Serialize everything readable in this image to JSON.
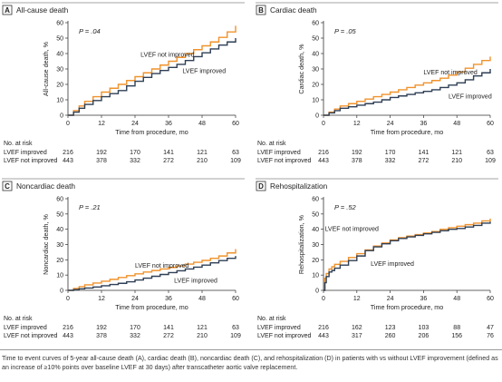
{
  "chart_data": [
    {
      "type": "line",
      "panel_letter": "A",
      "title": "All-cause death",
      "p_value": "P = .04",
      "xlabel": "Time from procedure, mo",
      "ylabel": "All-cause death, %",
      "xlim": [
        0,
        60
      ],
      "ylim": [
        0,
        60
      ],
      "xticks": [
        0,
        12,
        24,
        36,
        48,
        60
      ],
      "yticks": [
        0,
        10,
        20,
        30,
        40,
        50,
        60
      ],
      "grid": false,
      "series": [
        {
          "name": "LVEF not improved",
          "color": "#f0922b",
          "x": [
            0,
            2,
            4,
            6,
            9,
            12,
            15,
            18,
            21,
            24,
            27,
            30,
            33,
            36,
            39,
            42,
            45,
            48,
            51,
            54,
            57,
            60
          ],
          "y": [
            0,
            3,
            6,
            9,
            12,
            15,
            17.5,
            20,
            22.5,
            25,
            27.5,
            30,
            32.5,
            35,
            37.5,
            40,
            42.5,
            45,
            47.5,
            50.5,
            54,
            58
          ]
        },
        {
          "name": "LVEF improved",
          "color": "#2f3f55",
          "x": [
            0,
            2,
            4,
            6,
            9,
            12,
            15,
            18,
            21,
            24,
            27,
            30,
            33,
            36,
            39,
            42,
            45,
            48,
            51,
            54,
            57,
            60
          ],
          "y": [
            0,
            2,
            4.5,
            7,
            9.5,
            12,
            14,
            16,
            19,
            22,
            24.5,
            27,
            29,
            31,
            33,
            35.5,
            38,
            40.5,
            43,
            45.5,
            47.5,
            50
          ]
        }
      ],
      "annotations": [
        {
          "text": "LVEF not improved",
          "x": 26,
          "y": 38
        },
        {
          "text": "LVEF improved",
          "x": 41,
          "y": 27.5
        }
      ],
      "risk_table": {
        "header": "No. at risk",
        "rows": [
          {
            "label": "LVEF improved",
            "values": [
              216,
              192,
              170,
              141,
              121,
              63
            ]
          },
          {
            "label": "LVEF not improved",
            "values": [
              443,
              378,
              332,
              272,
              210,
              109
            ]
          }
        ]
      }
    },
    {
      "type": "line",
      "panel_letter": "B",
      "title": "Cardiac death",
      "p_value": "P = .05",
      "xlabel": "Time from procedure, mo",
      "ylabel": "Cardiac death, %",
      "xlim": [
        0,
        60
      ],
      "ylim": [
        0,
        60
      ],
      "xticks": [
        0,
        12,
        24,
        36,
        48,
        60
      ],
      "yticks": [
        0,
        10,
        20,
        30,
        40,
        50,
        60
      ],
      "grid": false,
      "series": [
        {
          "name": "LVEF not improved",
          "color": "#f0922b",
          "x": [
            0,
            2,
            4,
            6,
            9,
            12,
            15,
            18,
            21,
            24,
            27,
            30,
            33,
            36,
            39,
            42,
            45,
            48,
            51,
            54,
            57,
            60
          ],
          "y": [
            0,
            2,
            4,
            6,
            7.5,
            9,
            10.5,
            12,
            13.5,
            15,
            16.5,
            18,
            19.5,
            21,
            22.5,
            24,
            26,
            28,
            30.5,
            33,
            35.5,
            38
          ]
        },
        {
          "name": "LVEF improved",
          "color": "#2f3f55",
          "x": [
            0,
            2,
            4,
            6,
            9,
            12,
            15,
            18,
            21,
            24,
            27,
            30,
            33,
            36,
            39,
            42,
            45,
            48,
            51,
            54,
            57,
            60
          ],
          "y": [
            0,
            1.5,
            3,
            4.5,
            5.5,
            6.5,
            7.5,
            8.5,
            10,
            11.5,
            12.5,
            13.5,
            14.5,
            15.5,
            16.5,
            18,
            19.5,
            21,
            23,
            25.5,
            27.5,
            30
          ]
        }
      ],
      "annotations": [
        {
          "text": "LVEF not improved",
          "x": 36,
          "y": 26.5
        },
        {
          "text": "LVEF improved",
          "x": 45,
          "y": 11
        }
      ],
      "risk_table": {
        "header": "No. at risk",
        "rows": [
          {
            "label": "LVEF improved",
            "values": [
              216,
              192,
              170,
              141,
              121,
              63
            ]
          },
          {
            "label": "LVEF not improved",
            "values": [
              443,
              378,
              332,
              272,
              210,
              109
            ]
          }
        ]
      }
    },
    {
      "type": "line",
      "panel_letter": "C",
      "title": "Noncardiac death",
      "p_value": "P = .21",
      "xlabel": "Time from procedure, mo",
      "ylabel": "Noncardiac death, %",
      "xlim": [
        0,
        60
      ],
      "ylim": [
        0,
        60
      ],
      "xticks": [
        0,
        12,
        24,
        36,
        48,
        60
      ],
      "yticks": [
        0,
        10,
        20,
        30,
        40,
        50,
        60
      ],
      "grid": false,
      "series": [
        {
          "name": "LVEF not improved",
          "color": "#f0922b",
          "x": [
            0,
            2,
            4,
            6,
            9,
            12,
            15,
            18,
            21,
            24,
            27,
            30,
            33,
            36,
            39,
            42,
            45,
            48,
            51,
            54,
            57,
            60
          ],
          "y": [
            0,
            1.2,
            2.4,
            3.6,
            4.8,
            6,
            7.2,
            8.4,
            9.6,
            10.8,
            12,
            13,
            14,
            15,
            16,
            17.2,
            18.4,
            19.6,
            21,
            22.5,
            24.5,
            27
          ]
        },
        {
          "name": "LVEF improved",
          "color": "#2f3f55",
          "x": [
            0,
            2,
            4,
            6,
            9,
            12,
            15,
            18,
            21,
            24,
            27,
            30,
            33,
            36,
            39,
            42,
            45,
            48,
            51,
            54,
            57,
            60
          ],
          "y": [
            0,
            0.5,
            1,
            1.5,
            2.2,
            3,
            3.8,
            4.6,
            5.6,
            6.8,
            8,
            9.2,
            10.4,
            11.6,
            12.8,
            14,
            15.2,
            16.5,
            18,
            19.5,
            21,
            22.5
          ]
        }
      ],
      "annotations": [
        {
          "text": "LVEF not improved",
          "x": 24,
          "y": 15
        },
        {
          "text": "LVEF improved",
          "x": 38,
          "y": 5
        }
      ],
      "risk_table": {
        "header": "No. at risk",
        "rows": [
          {
            "label": "LVEF improved",
            "values": [
              216,
              192,
              170,
              141,
              121,
              63
            ]
          },
          {
            "label": "LVEF not improved",
            "values": [
              443,
              378,
              332,
              272,
              210,
              109
            ]
          }
        ]
      }
    },
    {
      "type": "line",
      "panel_letter": "D",
      "title": "Rehospitalization",
      "p_value": "P = .52",
      "xlabel": "Time from procedure, mo",
      "ylabel": "Rehospitalization, %",
      "xlim": [
        0,
        60
      ],
      "ylim": [
        0,
        60
      ],
      "xticks": [
        0,
        12,
        24,
        36,
        48,
        60
      ],
      "yticks": [
        0,
        10,
        20,
        30,
        40,
        50,
        60
      ],
      "grid": false,
      "series": [
        {
          "name": "LVEF not improved",
          "color": "#f0922b",
          "x": [
            0,
            0.5,
            1,
            2,
            3,
            4,
            6,
            9,
            12,
            15,
            18,
            21,
            24,
            27,
            30,
            33,
            36,
            39,
            42,
            45,
            48,
            51,
            54,
            57,
            60
          ],
          "y": [
            0,
            8,
            11,
            14,
            15.5,
            17,
            19,
            21.5,
            24,
            26.5,
            29,
            31,
            33,
            34.5,
            35.5,
            36.5,
            37.5,
            38.5,
            40,
            41,
            42,
            43,
            44,
            45.5,
            47
          ]
        },
        {
          "name": "LVEF improved",
          "color": "#2f3f55",
          "x": [
            0,
            0.5,
            1,
            2,
            3,
            4,
            6,
            9,
            12,
            15,
            18,
            21,
            24,
            27,
            30,
            33,
            36,
            39,
            42,
            45,
            48,
            51,
            54,
            57,
            60
          ],
          "y": [
            0,
            5,
            9,
            12,
            13,
            14.5,
            16.5,
            19.5,
            22.5,
            26,
            28.5,
            30.5,
            32.5,
            34,
            35,
            36,
            37,
            38,
            39,
            40,
            40.5,
            41.5,
            42.5,
            44,
            45
          ]
        }
      ],
      "annotations": [
        {
          "text": "LVEF not improved",
          "x": 0.5,
          "y": 39
        },
        {
          "text": "LVEF improved",
          "x": 17,
          "y": 16
        }
      ],
      "risk_table": {
        "header": "No. at risk",
        "rows": [
          {
            "label": "LVEF improved",
            "values": [
              216,
              162,
              123,
              103,
              88,
              47
            ]
          },
          {
            "label": "LVEF not improved",
            "values": [
              443,
              317,
              260,
              206,
              156,
              76
            ]
          }
        ]
      }
    }
  ],
  "caption": "Time to event curves of 5-year all-cause death (A), cardiac death (B), noncardiac death (C), and rehospitalization (D) in patients with vs without LVEF improvement (defined as an increase of ≥10% points over baseline LVEF at 30 days) after transcatheter aortic valve replacement."
}
